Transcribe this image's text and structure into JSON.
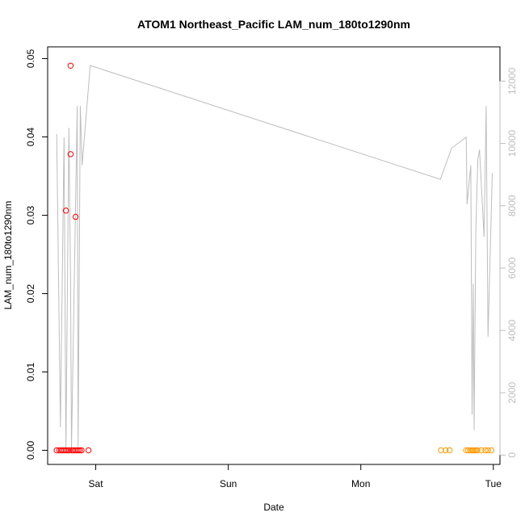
{
  "chart_data": {
    "type": "scatter",
    "title": "ATOM1 Northeast_Pacific LAM_num_180to1290nm",
    "xlabel": "Date",
    "ylabel": "LAM_num_180to1290nm",
    "x_unit": "days since Fri 00:00",
    "xlim": [
      0.637,
      4.05
    ],
    "ylim": [
      -0.0018,
      0.0515
    ],
    "y2lim": [
      -300,
      13100
    ],
    "x_ticks": [
      {
        "value": 1,
        "label": "Sat"
      },
      {
        "value": 2,
        "label": "Sun"
      },
      {
        "value": 3,
        "label": "Mon"
      },
      {
        "value": 4,
        "label": "Tue"
      }
    ],
    "y_ticks": [
      {
        "value": 0.0,
        "label": "0.00"
      },
      {
        "value": 0.01,
        "label": "0.01"
      },
      {
        "value": 0.02,
        "label": "0.02"
      },
      {
        "value": 0.03,
        "label": "0.03"
      },
      {
        "value": 0.04,
        "label": "0.04"
      },
      {
        "value": 0.05,
        "label": "0.05"
      }
    ],
    "y2_ticks": [
      {
        "value": 0,
        "label": "0"
      },
      {
        "value": 2000,
        "label": "2000"
      },
      {
        "value": 4000,
        "label": "4000"
      },
      {
        "value": 6000,
        "label": "6000"
      },
      {
        "value": 8000,
        "label": "8000"
      },
      {
        "value": 10000,
        "label": "10000"
      },
      {
        "value": 12000,
        "label": "12000"
      }
    ],
    "grid": false,
    "colors": {
      "red": "#ff0000",
      "orange": "#ff9900",
      "gray_line": "#bdbdbd"
    },
    "series": [
      {
        "color": "#ff0000",
        "marker": "open-circle",
        "axis": "left",
        "points": [
          [
            0.705,
            0.0
          ],
          [
            0.725,
            0.0
          ],
          [
            0.738,
            0.0
          ],
          [
            0.75,
            0.0
          ],
          [
            0.763,
            0.0
          ],
          [
            0.775,
            0.0
          ],
          [
            0.788,
            0.0
          ],
          [
            0.8,
            0.0
          ],
          [
            0.775,
            0.0306
          ],
          [
            0.81,
            0.0491
          ],
          [
            0.81,
            0.0378
          ],
          [
            0.818,
            0.0
          ],
          [
            0.83,
            0.0
          ],
          [
            0.843,
            0.0
          ],
          [
            0.848,
            0.0298
          ],
          [
            0.856,
            0.0
          ],
          [
            0.868,
            0.0
          ],
          [
            0.88,
            0.0
          ],
          [
            0.893,
            0.0
          ],
          [
            0.945,
            0.0
          ]
        ]
      },
      {
        "color": "#ff9900",
        "marker": "open-circle",
        "axis": "left",
        "points": [
          [
            3.605,
            0.0
          ],
          [
            3.64,
            0.0
          ],
          [
            3.67,
            0.0
          ],
          [
            3.795,
            0.0
          ],
          [
            3.81,
            0.0
          ],
          [
            3.825,
            0.0
          ],
          [
            3.84,
            0.0
          ],
          [
            3.85,
            0.0
          ],
          [
            3.86,
            0.0
          ],
          [
            3.87,
            0.0
          ],
          [
            3.88,
            0.0
          ],
          [
            3.91,
            0.0
          ],
          [
            3.94,
            0.0
          ],
          [
            3.96,
            0.0
          ],
          [
            3.985,
            0.0
          ]
        ]
      },
      {
        "color": "#bdbdbd",
        "marker": "line",
        "axis": "right",
        "points": [
          [
            0.705,
            10300
          ],
          [
            0.733,
            900
          ],
          [
            0.761,
            10200
          ],
          [
            0.775,
            180
          ],
          [
            0.797,
            10500
          ],
          [
            0.81,
            5500
          ],
          [
            0.817,
            180
          ],
          [
            0.86,
            11200
          ],
          [
            0.867,
            180
          ],
          [
            0.883,
            11200
          ],
          [
            0.897,
            9300
          ],
          [
            0.958,
            12500
          ],
          [
            3.6,
            8850
          ],
          [
            3.685,
            9850
          ],
          [
            3.795,
            10200
          ],
          [
            3.802,
            8050
          ],
          [
            3.83,
            9300
          ],
          [
            3.84,
            1300
          ],
          [
            3.848,
            5500
          ],
          [
            3.855,
            800
          ],
          [
            3.868,
            7200
          ],
          [
            3.883,
            9500
          ],
          [
            3.896,
            9800
          ],
          [
            3.93,
            7000
          ],
          [
            3.946,
            11200
          ],
          [
            3.96,
            3800
          ],
          [
            3.992,
            9050
          ]
        ]
      }
    ]
  }
}
